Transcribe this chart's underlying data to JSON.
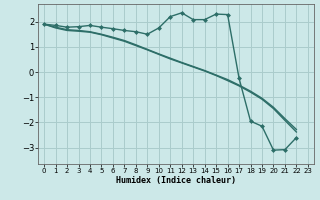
{
  "xlabel": "Humidex (Indice chaleur)",
  "background_color": "#cce8e8",
  "grid_color": "#aacccc",
  "line_color": "#2d6e68",
  "xlim": [
    -0.5,
    23.5
  ],
  "ylim": [
    -3.65,
    2.7
  ],
  "x_ticks": [
    0,
    1,
    2,
    3,
    4,
    5,
    6,
    7,
    8,
    9,
    10,
    11,
    12,
    13,
    14,
    15,
    16,
    17,
    18,
    19,
    20,
    21,
    22,
    23
  ],
  "y_ticks": [
    -3,
    -2,
    -1,
    0,
    1,
    2
  ],
  "line1_x": [
    0,
    1,
    2,
    3,
    4,
    5,
    6,
    7,
    8,
    9,
    10,
    11,
    12,
    13,
    14,
    15,
    16,
    17,
    18,
    19,
    20,
    21,
    22
  ],
  "line1_y": [
    1.9,
    1.85,
    1.78,
    1.8,
    1.85,
    1.78,
    1.72,
    1.65,
    1.6,
    1.5,
    1.75,
    2.2,
    2.35,
    2.08,
    2.08,
    2.3,
    2.28,
    -0.25,
    -1.95,
    -2.15,
    -3.1,
    -3.08,
    -2.6
  ],
  "line2_x": [
    0,
    1,
    2,
    3,
    4,
    5,
    6,
    7,
    8,
    9,
    10,
    11,
    12,
    13,
    14,
    15,
    16,
    17,
    18,
    19,
    20,
    21,
    22
  ],
  "line2_y": [
    1.9,
    1.75,
    1.65,
    1.62,
    1.58,
    1.48,
    1.35,
    1.22,
    1.05,
    0.88,
    0.7,
    0.52,
    0.36,
    0.2,
    0.04,
    -0.14,
    -0.34,
    -0.55,
    -0.8,
    -1.08,
    -1.45,
    -1.92,
    -2.38
  ],
  "line3_x": [
    0,
    1,
    2,
    3,
    4,
    5,
    6,
    7,
    8,
    9,
    10,
    11,
    12,
    13,
    14,
    15,
    16,
    17,
    18,
    19,
    20,
    21,
    22
  ],
  "line3_y": [
    1.9,
    1.78,
    1.68,
    1.65,
    1.6,
    1.5,
    1.38,
    1.25,
    1.08,
    0.9,
    0.72,
    0.55,
    0.38,
    0.22,
    0.06,
    -0.12,
    -0.3,
    -0.52,
    -0.76,
    -1.04,
    -1.4,
    -1.85,
    -2.28
  ],
  "linewidth": 1.0,
  "markersize": 2.5
}
